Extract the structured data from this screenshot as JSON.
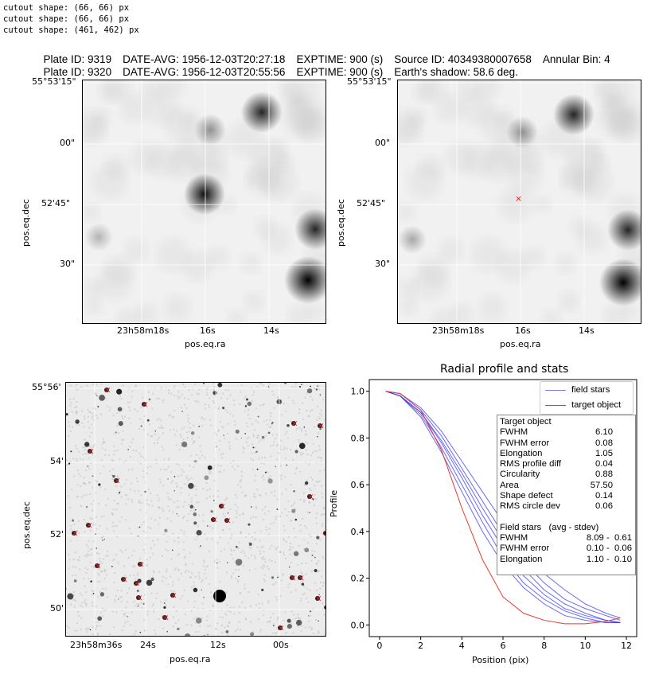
{
  "console": [
    "cutout shape: (66, 66) px",
    "cutout shape: (66, 66) px",
    "cutout shape: (461, 462) px"
  ],
  "header": {
    "line1": [
      "Plate ID: 9319",
      "DATE-AVG: 1956-12-03T20:27:18",
      "EXPTIME: 900 (s)",
      "Source ID: 40349380007658",
      "Annular Bin: 4"
    ],
    "line2": [
      "Plate ID: 9320",
      "DATE-AVG: 1956-12-03T20:55:56",
      "EXPTIME: 900 (s)",
      "Earth's shadow: 58.6 deg."
    ]
  },
  "cutouts": {
    "xlabel": "pos.eq.ra",
    "ylabel": "pos.eq.dec",
    "dec_ticks": [
      "55°53'15\"",
      "00\"",
      "52'45\"",
      "30\""
    ],
    "ra_ticks": [
      "23h58m18s",
      "16s",
      "14s"
    ]
  },
  "field": {
    "xlabel": "pos.eq.ra",
    "ylabel": "pos.eq.dec",
    "dec_ticks": [
      "55°56'",
      "54'",
      "52'",
      "50'"
    ],
    "ra_ticks": [
      "23h58m36s",
      "24s",
      "12s",
      "00s"
    ]
  },
  "stats": {
    "title": "Target object",
    "target": [
      {
        "k": "FWHM",
        "v": "6.10"
      },
      {
        "k": "FWHM error",
        "v": "0.08"
      },
      {
        "k": "Elongation",
        "v": "1.05"
      },
      {
        "k": "RMS profile diff",
        "v": "0.04"
      },
      {
        "k": "Circularity",
        "v": "0.88"
      },
      {
        "k": "Area",
        "v": "57.50"
      },
      {
        "k": "Shape defect",
        "v": "0.14"
      },
      {
        "k": "RMS circle dev",
        "v": "0.06"
      }
    ],
    "field_title": "Field stars   (avg - stdev)",
    "field": [
      {
        "k": "FWHM",
        "v": "8.09 -  0.61"
      },
      {
        "k": "FWHM error",
        "v": "0.10 -  0.06"
      },
      {
        "k": "Elongation",
        "v": "1.10 -  0.10"
      }
    ]
  },
  "chart_data": {
    "type": "line",
    "title": "Radial profile and stats",
    "xlabel": "Position (pix)",
    "ylabel": "Profile",
    "xlim": [
      -0.5,
      12.5
    ],
    "ylim": [
      -0.05,
      1.05
    ],
    "xticks": [
      "0",
      "2",
      "4",
      "6",
      "8",
      "10",
      "12"
    ],
    "yticks": [
      "0.0",
      "0.2",
      "0.4",
      "0.6",
      "0.8",
      "1.0"
    ],
    "legend": [
      "field stars",
      "target object"
    ],
    "legend_position": "top-right",
    "x": [
      0.3,
      1,
      2,
      3,
      4,
      5,
      6,
      7,
      8,
      9,
      10,
      11,
      11.7
    ],
    "series": [
      {
        "name": "target object",
        "color": "#e8392f",
        "values": [
          1,
          0.99,
          0.92,
          0.75,
          0.5,
          0.28,
          0.12,
          0.05,
          0.02,
          0.005,
          0.005,
          0.015,
          0.03
        ]
      },
      {
        "name": "field stars",
        "color": "#2b2bf0",
        "values": [
          1,
          0.98,
          0.89,
          0.74,
          0.57,
          0.4,
          0.26,
          0.16,
          0.09,
          0.04,
          0.02,
          0.01,
          0.01
        ]
      },
      {
        "name": "field stars",
        "color": "#2b2bf0",
        "values": [
          1,
          0.98,
          0.9,
          0.76,
          0.6,
          0.44,
          0.29,
          0.18,
          0.11,
          0.06,
          0.03,
          0.01,
          0.01
        ]
      },
      {
        "name": "field stars",
        "color": "#2b2bf0",
        "values": [
          1,
          0.98,
          0.91,
          0.78,
          0.63,
          0.47,
          0.33,
          0.21,
          0.13,
          0.07,
          0.04,
          0.02,
          0.01
        ]
      },
      {
        "name": "field stars",
        "color": "#2b2bf0",
        "values": [
          1,
          0.98,
          0.91,
          0.79,
          0.65,
          0.5,
          0.36,
          0.24,
          0.15,
          0.09,
          0.05,
          0.02,
          0.01
        ]
      },
      {
        "name": "field stars",
        "color": "#2b2bf0",
        "values": [
          1,
          0.99,
          0.92,
          0.81,
          0.67,
          0.53,
          0.39,
          0.27,
          0.18,
          0.11,
          0.07,
          0.04,
          0.02
        ]
      },
      {
        "name": "field stars",
        "color": "#2b2bf0",
        "values": [
          1,
          0.99,
          0.93,
          0.83,
          0.7,
          0.57,
          0.44,
          0.32,
          0.22,
          0.15,
          0.09,
          0.05,
          0.03
        ]
      }
    ]
  }
}
